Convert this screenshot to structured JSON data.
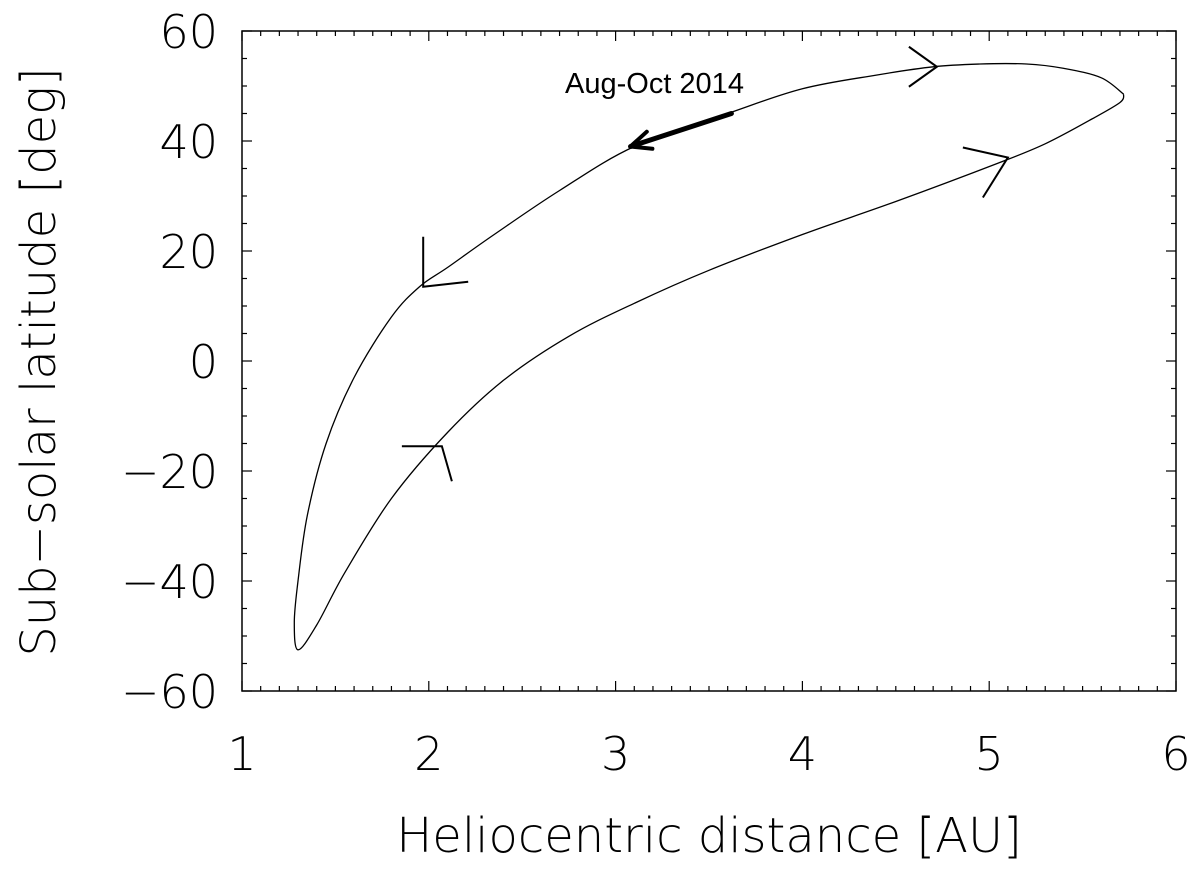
{
  "chart_data": {
    "type": "line",
    "title": "",
    "xlabel": "Heliocentric distance [AU]",
    "ylabel": "Sub−solar latitude [deg]",
    "xlim": [
      1,
      6
    ],
    "ylim": [
      -60,
      60
    ],
    "x_ticks": [
      1,
      2,
      3,
      4,
      5,
      6
    ],
    "x_tick_labels": [
      "1",
      "2",
      "3",
      "4",
      "5",
      "6"
    ],
    "y_ticks": [
      60,
      40,
      20,
      0,
      -20,
      -40,
      -60
    ],
    "y_tick_labels": [
      "60",
      "40",
      "20",
      "0",
      "−20",
      "−40",
      "−60"
    ],
    "grid": false,
    "series": [
      {
        "x": [
          5.72,
          5.6,
          5.4,
          5.2,
          4.95,
          4.7,
          4.4,
          4.0,
          3.6,
          3.1,
          2.7,
          2.35,
          2.1,
          1.95,
          1.8,
          1.6,
          1.45,
          1.35,
          1.3,
          1.28,
          1.3,
          1.4,
          1.55,
          1.8,
          2.1,
          2.4,
          2.75,
          3.1,
          3.5,
          4.0,
          4.5,
          5.05,
          5.3,
          5.55,
          5.7,
          5.72
        ],
        "y": [
          48.5,
          51.5,
          53.2,
          54.0,
          54.0,
          53.5,
          52.0,
          49.5,
          45.0,
          39.0,
          31.0,
          23.0,
          17.0,
          13.5,
          8.0,
          -3.0,
          -15.0,
          -28.0,
          -40.0,
          -47.5,
          -52.5,
          -48.0,
          -38.5,
          -25.0,
          -13.0,
          -3.5,
          4.5,
          10.5,
          16.5,
          23.0,
          29.0,
          36.0,
          39.5,
          44.0,
          47.0,
          48.5
        ]
      }
    ],
    "direction_markers": [
      {
        "x": 4.72,
        "y": 53.5
      },
      {
        "x": 5.1,
        "y": 37.0
      },
      {
        "x": 1.97,
        "y": 13.5
      },
      {
        "x": 2.07,
        "y": -15.5
      }
    ],
    "annotations": [
      {
        "text": "Aug-Oct 2014",
        "arrow_from": [
          3.62,
          45.0
        ],
        "arrow_to": [
          3.08,
          39.0
        ]
      }
    ]
  }
}
